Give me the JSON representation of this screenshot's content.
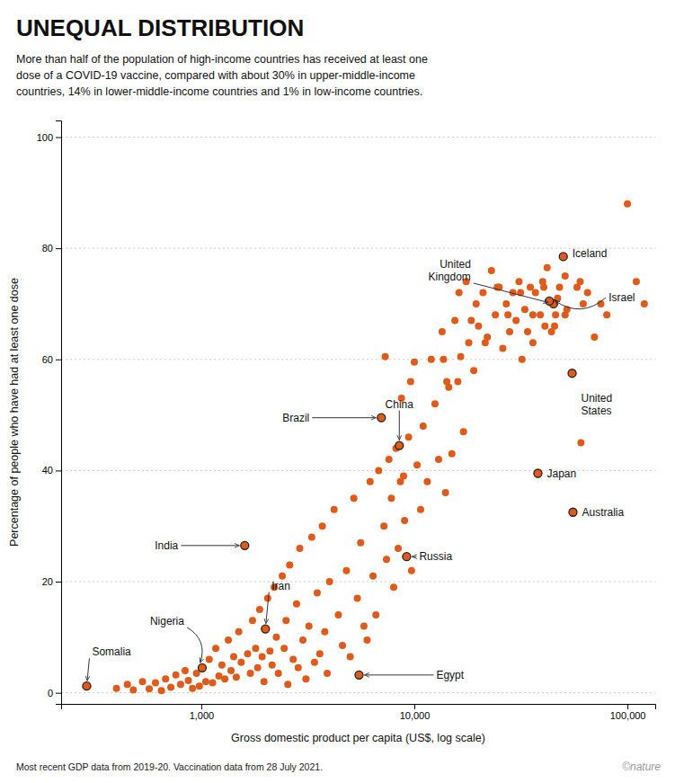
{
  "chart_data": {
    "type": "scatter",
    "title": "UNEQUAL DISTRIBUTION",
    "subtitle": "More than half of the population of high-income countries has received at least one\ndose of a COVID-19 vaccine, compared with about 30% in upper-middle-income\ncountries, 14% in lower-middle-income countries and 1% in low-income countries.",
    "xlabel": "Gross domestic product per capita (US$, log scale)",
    "ylabel": "Percentage of people who have had at least one dose",
    "footnote": "Most recent GDP data from 2019-20. Vaccination data from 28 July 2021.",
    "copyright": "©nature",
    "color": "#E05A1A",
    "log": "x",
    "grid": true,
    "xlim": [
      220,
      135000
    ],
    "ylim": [
      -2,
      103
    ],
    "xticks": [
      {
        "value": 1000,
        "label": "1,000"
      },
      {
        "value": 10000,
        "label": "10,000"
      },
      {
        "value": 100000,
        "label": "100,000"
      }
    ],
    "yticks": [
      0,
      20,
      40,
      60,
      80,
      100
    ],
    "x": [
      290,
      400,
      450,
      480,
      530,
      570,
      610,
      650,
      680,
      720,
      760,
      800,
      840,
      870,
      910,
      950,
      980,
      1010,
      1050,
      1090,
      1130,
      1170,
      1210,
      1250,
      1290,
      1340,
      1380,
      1420,
      1460,
      1500,
      1540,
      1600,
      1650,
      1700,
      1740,
      1800,
      1840,
      1880,
      1930,
      1970,
      2000,
      2050,
      2100,
      2150,
      2200,
      2250,
      2300,
      2400,
      2450,
      2500,
      2550,
      2600,
      2700,
      2800,
      2850,
      2900,
      3000,
      3100,
      3200,
      3300,
      3400,
      3500,
      3600,
      3700,
      3800,
      3900,
      4000,
      4200,
      4400,
      4600,
      4800,
      5000,
      5200,
      5400,
      5500,
      5600,
      5800,
      6000,
      6200,
      6400,
      6600,
      6800,
      7000,
      7200,
      7400,
      7600,
      7800,
      8000,
      8200,
      8400,
      8500,
      8700,
      8900,
      9000,
      9200,
      9400,
      9700,
      10000,
      10300,
      10700,
      11000,
      11500,
      12000,
      12500,
      13000,
      13500,
      14000,
      14500,
      15000,
      15500,
      16000,
      16500,
      17000,
      17500,
      18000,
      19000,
      19500,
      20000,
      21000,
      22000,
      23000,
      24000,
      25000,
      26000,
      27000,
      28000,
      29000,
      30000,
      31000,
      32000,
      33000,
      34000,
      35000,
      36000,
      37000,
      38000,
      39000,
      40000,
      41000,
      42000,
      43000,
      44000,
      45000,
      46000,
      47000,
      48000,
      50000,
      51000,
      52000,
      55000,
      55500,
      58000,
      60000,
      62000,
      65000,
      70000,
      75000,
      80000,
      100000,
      110000,
      120000,
      13700,
      14200,
      16200,
      18500,
      21500,
      24500,
      27500,
      31500,
      36000,
      40500,
      45500,
      51000,
      60500,
      9600,
      8600,
      7300
    ],
    "values": [
      1.2,
      0.8,
      1.5,
      0.5,
      2.0,
      0.7,
      1.8,
      0.4,
      2.5,
      1.0,
      3.2,
      1.5,
      4.0,
      2.2,
      0.8,
      3.5,
      1.2,
      4.5,
      2.0,
      6.0,
      1.8,
      8.0,
      3.0,
      5.0,
      2.5,
      9.5,
      4.0,
      6.5,
      2.8,
      11.0,
      5.5,
      26.5,
      7.0,
      3.5,
      13.0,
      8.0,
      4.5,
      15.0,
      6.5,
      2.0,
      11.5,
      17.0,
      7.5,
      5.0,
      19.0,
      10.0,
      3.5,
      21.0,
      8.0,
      13.0,
      1.5,
      23.0,
      6.0,
      16.0,
      4.5,
      26.0,
      9.5,
      2.5,
      12.0,
      28.0,
      5.5,
      18.0,
      7.0,
      30.0,
      11.0,
      3.5,
      20.0,
      33.0,
      14.0,
      8.5,
      22.0,
      6.5,
      35.0,
      17.0,
      3.2,
      27.0,
      12.0,
      9.5,
      38.0,
      21.0,
      14.0,
      40.0,
      49.5,
      30.0,
      24.0,
      42.0,
      35.0,
      19.0,
      44.0,
      26.0,
      44.5,
      53.0,
      39.0,
      31.0,
      24.5,
      46.0,
      22.0,
      59.5,
      41.0,
      33.0,
      48.0,
      38.0,
      60.0,
      52.0,
      42.0,
      65.0,
      36.0,
      55.0,
      43.0,
      67.0,
      56.0,
      60.5,
      47.0,
      74.0,
      63.0,
      58.0,
      70.0,
      66.0,
      72.0,
      64.0,
      76.0,
      68.0,
      73.0,
      62.0,
      70.0,
      65.0,
      72.0,
      67.0,
      74.0,
      60.0,
      69.0,
      65.0,
      73.0,
      68.0,
      72.0,
      39.5,
      68.0,
      74.0,
      66.0,
      76.5,
      70.5,
      65.0,
      70.0,
      68.0,
      71.0,
      73.0,
      78.5,
      75.0,
      69.0,
      57.5,
      32.5,
      73.0,
      74.0,
      70.0,
      72.0,
      64.0,
      70.0,
      68.0,
      88.0,
      74.0,
      70.0,
      60.0,
      56.0,
      72.0,
      67.0,
      63.0,
      73.0,
      68.0,
      72.0,
      63.0,
      73.0,
      66.0,
      68.0,
      45.0,
      56.0,
      38.0,
      60.5
    ],
    "annotations": [
      {
        "text": "Somalia",
        "x": 290,
        "y": 1.2
      },
      {
        "text": "Nigeria",
        "x": 1010,
        "y": 4.5
      },
      {
        "text": "Iran",
        "x": 2000,
        "y": 11.5
      },
      {
        "text": "India",
        "x": 1600,
        "y": 26.5
      },
      {
        "text": "Brazil",
        "x": 7000,
        "y": 49.5
      },
      {
        "text": "China",
        "x": 8500,
        "y": 44.5
      },
      {
        "text": "Egypt",
        "x": 5500,
        "y": 3.2
      },
      {
        "text": "Russia",
        "x": 9200,
        "y": 24.5
      },
      {
        "text": "United\nStates",
        "x": 55000,
        "y": 57.5
      },
      {
        "text": "United\nKingdom",
        "x": 45000,
        "y": 70.0
      },
      {
        "text": "Iceland",
        "x": 50000,
        "y": 78.5
      },
      {
        "text": "Israel",
        "x": 43000,
        "y": 70.5
      },
      {
        "text": "Japan",
        "x": 38000,
        "y": 39.5
      },
      {
        "text": "Australia",
        "x": 55500,
        "y": 32.5
      }
    ]
  }
}
